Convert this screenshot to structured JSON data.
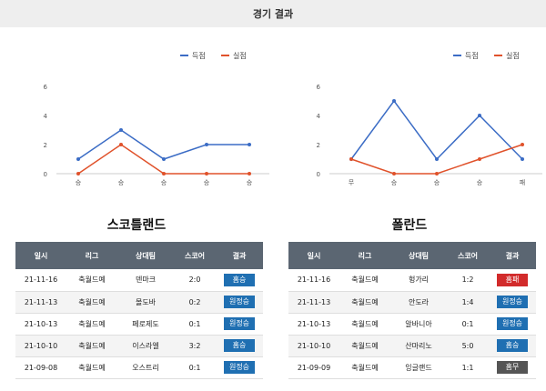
{
  "header": {
    "title": "경기 결과"
  },
  "legend": {
    "scored": "득점",
    "conceded": "실점"
  },
  "colors": {
    "scored": "#3b6cc5",
    "conceded": "#e0522b",
    "win": "#1f6fb2",
    "loss": "#d22b2b",
    "draw": "#555555",
    "axis": "#cccccc"
  },
  "chart_data": [
    {
      "type": "line",
      "categories": [
        "승",
        "승",
        "승",
        "승",
        "승"
      ],
      "series": [
        {
          "name": "득점",
          "values": [
            1,
            3,
            1,
            2,
            2
          ]
        },
        {
          "name": "실점",
          "values": [
            0,
            2,
            0,
            0,
            0
          ]
        }
      ],
      "ylim": [
        0,
        6
      ],
      "yticks": [
        0,
        2,
        4,
        6
      ],
      "legend": "top-right",
      "grid": false
    },
    {
      "type": "line",
      "categories": [
        "무",
        "승",
        "승",
        "승",
        "패"
      ],
      "series": [
        {
          "name": "득점",
          "values": [
            1,
            5,
            1,
            4,
            1
          ]
        },
        {
          "name": "실점",
          "values": [
            1,
            0,
            0,
            1,
            2
          ]
        }
      ],
      "ylim": [
        0,
        6
      ],
      "yticks": [
        0,
        2,
        4,
        6
      ],
      "legend": "top-right",
      "grid": false
    }
  ],
  "teams": [
    {
      "name": "스코틀랜드",
      "columns": [
        "일시",
        "리그",
        "상대팀",
        "스코어",
        "결과"
      ],
      "rows": [
        {
          "date": "21-11-16",
          "league": "축월드예",
          "opponent": "덴마크",
          "score": "2:0",
          "result": "홈승",
          "kind": "win"
        },
        {
          "date": "21-11-13",
          "league": "축월드예",
          "opponent": "몰도바",
          "score": "0:2",
          "result": "원정승",
          "kind": "win"
        },
        {
          "date": "21-10-13",
          "league": "축월드예",
          "opponent": "페로제도",
          "score": "0:1",
          "result": "원정승",
          "kind": "win"
        },
        {
          "date": "21-10-10",
          "league": "축월드예",
          "opponent": "이스라엘",
          "score": "3:2",
          "result": "홈승",
          "kind": "win"
        },
        {
          "date": "21-09-08",
          "league": "축월드예",
          "opponent": "오스트리",
          "score": "0:1",
          "result": "원정승",
          "kind": "win"
        }
      ]
    },
    {
      "name": "폴란드",
      "columns": [
        "일시",
        "리그",
        "상대팀",
        "스코어",
        "결과"
      ],
      "rows": [
        {
          "date": "21-11-16",
          "league": "축월드예",
          "opponent": "헝가리",
          "score": "1:2",
          "result": "홈패",
          "kind": "loss"
        },
        {
          "date": "21-11-13",
          "league": "축월드예",
          "opponent": "안도라",
          "score": "1:4",
          "result": "원정승",
          "kind": "win"
        },
        {
          "date": "21-10-13",
          "league": "축월드예",
          "opponent": "알바니아",
          "score": "0:1",
          "result": "원정승",
          "kind": "win"
        },
        {
          "date": "21-10-10",
          "league": "축월드예",
          "opponent": "산마리노",
          "score": "5:0",
          "result": "홈승",
          "kind": "win"
        },
        {
          "date": "21-09-09",
          "league": "축월드예",
          "opponent": "잉글랜드",
          "score": "1:1",
          "result": "홈무",
          "kind": "draw"
        }
      ]
    }
  ]
}
